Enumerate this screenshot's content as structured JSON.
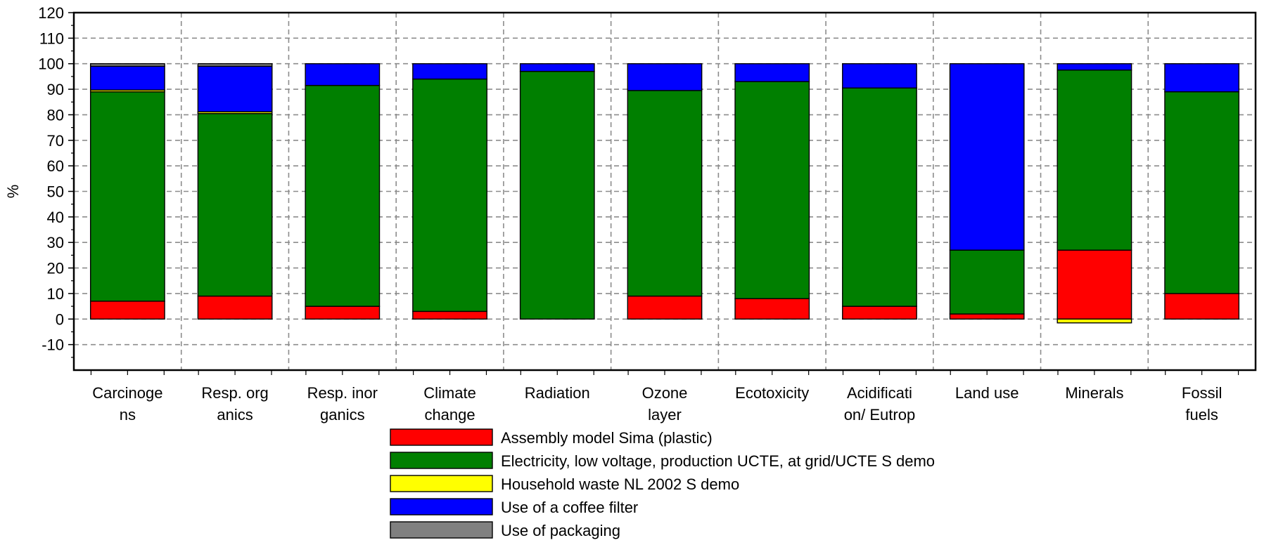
{
  "chart_data": {
    "type": "bar",
    "stacked": true,
    "ylabel": "%",
    "ylim": [
      -20,
      120
    ],
    "yticks": [
      -10,
      0,
      10,
      20,
      30,
      40,
      50,
      60,
      70,
      80,
      90,
      100,
      110,
      120
    ],
    "grid": true,
    "legend_position": "bottom",
    "categories": [
      [
        "Carcinoge",
        "ns"
      ],
      [
        "Resp. org",
        "anics"
      ],
      [
        "Resp. inor",
        "ganics"
      ],
      [
        "Climate",
        "change"
      ],
      [
        "Radiation"
      ],
      [
        "Ozone",
        "layer"
      ],
      [
        "Ecotoxicity"
      ],
      [
        "Acidificati",
        "on/ Eutrop"
      ],
      [
        "Land use"
      ],
      [
        "Minerals"
      ],
      [
        "Fossil",
        "fuels"
      ]
    ],
    "series": [
      {
        "name": "Assembly model Sima (plastic)",
        "color": "#ff0000",
        "values": [
          7,
          9,
          5,
          3,
          0,
          9,
          8,
          5,
          2,
          27,
          10
        ]
      },
      {
        "name": "Electricity, low voltage, production UCTE, at grid/UCTE S demo",
        "color": "#007f00",
        "values": [
          82,
          71.5,
          86.5,
          91,
          97,
          80.5,
          85,
          85.5,
          25,
          70.5,
          79
        ]
      },
      {
        "name": "Household waste NL 2002 S demo",
        "color": "#ffff00",
        "values": [
          0.7,
          0.7,
          0,
          0,
          0,
          0,
          0,
          0,
          0,
          -1.5,
          0
        ]
      },
      {
        "name": "Use of a coffee filter",
        "color": "#0000ff",
        "values": [
          9.3,
          17.8,
          8.5,
          6,
          3,
          10.5,
          7,
          9.5,
          73,
          2.5,
          11
        ]
      },
      {
        "name": "Use of packaging",
        "color": "#808080",
        "values": [
          1,
          1,
          0,
          0,
          0,
          0,
          0,
          0,
          0,
          0,
          0
        ]
      }
    ]
  }
}
